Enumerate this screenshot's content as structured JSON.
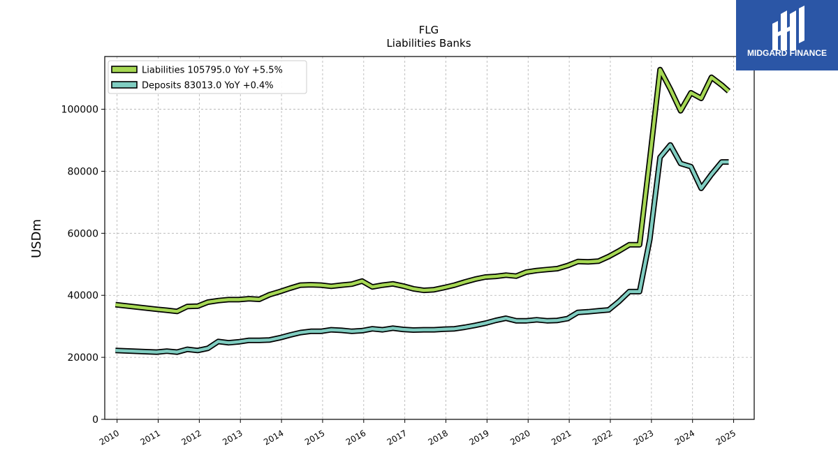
{
  "logo": {
    "text": "MIDGARD FINANCE",
    "background": "#2b56a6",
    "text_color": "#ffffff"
  },
  "chart_data": {
    "type": "line",
    "title": "FLG",
    "subtitle": "Liabilities Banks",
    "xlabel": "",
    "ylabel": "USDm",
    "xlim": [
      2009.7,
      2025.5
    ],
    "ylim": [
      0,
      117000
    ],
    "x_ticks": [
      "2010",
      "2011",
      "2012",
      "2013",
      "2014",
      "2015",
      "2016",
      "2017",
      "2018",
      "2019",
      "2020",
      "2021",
      "2022",
      "2023",
      "2024",
      "2025"
    ],
    "y_ticks": [
      0,
      20000,
      40000,
      60000,
      80000,
      100000
    ],
    "y_tick_labels": [
      "0",
      "20000",
      "40000",
      "60000",
      "80000",
      "100000"
    ],
    "grid": true,
    "legend_position": "top-left",
    "x": [
      2009.96,
      2010.96,
      2011.21,
      2011.46,
      2011.71,
      2011.96,
      2012.21,
      2012.46,
      2012.71,
      2012.96,
      2013.21,
      2013.46,
      2013.71,
      2013.96,
      2014.21,
      2014.46,
      2014.71,
      2014.96,
      2015.21,
      2015.46,
      2015.71,
      2015.96,
      2016.21,
      2016.46,
      2016.71,
      2016.96,
      2017.21,
      2017.46,
      2017.71,
      2017.96,
      2018.21,
      2018.46,
      2018.71,
      2018.96,
      2019.21,
      2019.46,
      2019.71,
      2019.96,
      2020.21,
      2020.46,
      2020.71,
      2020.96,
      2021.21,
      2021.46,
      2021.71,
      2021.96,
      2022.21,
      2022.46,
      2022.71,
      2022.96,
      2023.21,
      2023.46,
      2023.71,
      2023.96,
      2024.21,
      2024.46,
      2024.71,
      2024.88
    ],
    "series": [
      {
        "name": "Liabilities",
        "legend_label": "Liabilities  105795.0 YoY +5.5%",
        "color": "#a6d854",
        "values": [
          37000,
          35500,
          35200,
          34800,
          36400,
          36500,
          37800,
          38300,
          38600,
          38600,
          38900,
          38700,
          40200,
          41200,
          42300,
          43300,
          43400,
          43300,
          42900,
          43300,
          43600,
          44600,
          42700,
          43300,
          43700,
          43000,
          42100,
          41600,
          41800,
          42500,
          43300,
          44300,
          45200,
          45900,
          46100,
          46500,
          46200,
          47500,
          48000,
          48300,
          48600,
          49600,
          50900,
          50800,
          51000,
          52500,
          54300,
          56300,
          56300,
          84000,
          112800,
          106500,
          99500,
          105300,
          103500,
          110300,
          107800,
          105795
        ]
      },
      {
        "name": "Deposits",
        "legend_label": "Deposits  83013.0 YoY +0.4%",
        "color": "#80cdc1",
        "values": [
          22200,
          21700,
          22000,
          21700,
          22600,
          22200,
          22900,
          25100,
          24700,
          25000,
          25500,
          25500,
          25600,
          26300,
          27200,
          28000,
          28400,
          28400,
          28900,
          28700,
          28400,
          28600,
          29200,
          28900,
          29400,
          29000,
          28800,
          28900,
          28900,
          29100,
          29200,
          29700,
          30300,
          31000,
          31900,
          32600,
          31800,
          31800,
          32100,
          31800,
          31900,
          32500,
          34500,
          34700,
          35000,
          35300,
          38000,
          41200,
          41200,
          58000,
          84500,
          88500,
          82500,
          81500,
          74500,
          79000,
          83013,
          83013
        ]
      }
    ]
  }
}
